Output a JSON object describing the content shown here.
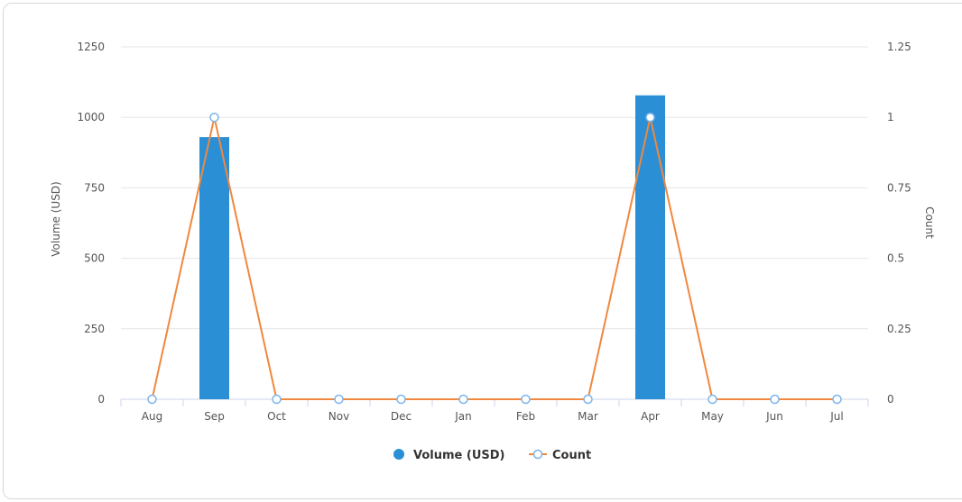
{
  "chart_data": {
    "type": "bar",
    "categories": [
      "Aug",
      "Sep",
      "Oct",
      "Nov",
      "Dec",
      "Jan",
      "Feb",
      "Mar",
      "Apr",
      "May",
      "Jun",
      "Jul"
    ],
    "series": [
      {
        "name": "Volume (USD)",
        "type": "bar",
        "axis": "left",
        "color": "#2b8fd6",
        "values": [
          0,
          930,
          0,
          0,
          0,
          0,
          0,
          0,
          1078,
          0,
          0,
          0
        ]
      },
      {
        "name": "Count",
        "type": "line",
        "axis": "right",
        "color": "#f0883e",
        "values": [
          0,
          1,
          0,
          0,
          0,
          0,
          0,
          0,
          1,
          0,
          0,
          0
        ]
      }
    ],
    "ylabel": "Volume (USD)",
    "y2label": "Count",
    "ylim": [
      0,
      1250
    ],
    "y2lim": [
      0,
      1.25
    ],
    "yticks": [
      "0",
      "250",
      "500",
      "750",
      "1000",
      "1250"
    ],
    "y2ticks": [
      "0",
      "0.25",
      "0.5",
      "0.75",
      "1",
      "1.25"
    ],
    "grid": true,
    "legend_position": "bottom-center"
  }
}
